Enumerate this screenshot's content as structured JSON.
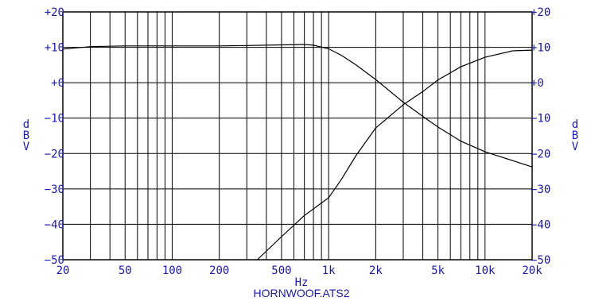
{
  "chart_data": {
    "type": "line",
    "title": "",
    "subtitle": "HORNWOOF.ATS2",
    "xlabel": "Hz",
    "ylabel_left": [
      "d",
      "B",
      "V"
    ],
    "ylabel_right": [
      "d",
      "B",
      "V"
    ],
    "x_scale": "log",
    "xlim": [
      20,
      20000
    ],
    "ylim": [
      -50,
      20
    ],
    "grid": true,
    "x_ticks": [
      {
        "value": 20,
        "label": "20"
      },
      {
        "value": 50,
        "label": "50"
      },
      {
        "value": 100,
        "label": "100"
      },
      {
        "value": 200,
        "label": "200"
      },
      {
        "value": 500,
        "label": "500"
      },
      {
        "value": 1000,
        "label": "1k"
      },
      {
        "value": 2000,
        "label": "2k"
      },
      {
        "value": 5000,
        "label": "5k"
      },
      {
        "value": 10000,
        "label": "10k"
      },
      {
        "value": 20000,
        "label": "20k"
      }
    ],
    "y_ticks": [
      {
        "value": 20,
        "label": "+20"
      },
      {
        "value": 10,
        "label": "+10"
      },
      {
        "value": 0,
        "label": "+0"
      },
      {
        "value": -10,
        "label": "−10"
      },
      {
        "value": -20,
        "label": "−20"
      },
      {
        "value": -30,
        "label": "−30"
      },
      {
        "value": -40,
        "label": "−40"
      },
      {
        "value": -50,
        "label": "−50"
      }
    ],
    "series": [
      {
        "x": [
          20,
          30,
          50,
          100,
          200,
          300,
          500,
          700,
          800,
          1000,
          1200,
          1500,
          2000,
          3000,
          4000,
          5000,
          7000,
          10000,
          15000,
          20000
        ],
        "y": [
          9.5,
          10.2,
          10.4,
          10.4,
          10.4,
          10.5,
          10.7,
          10.8,
          10.6,
          9.6,
          7.8,
          5.0,
          0.9,
          -5.5,
          -9.5,
          -12.5,
          -16.5,
          -19.5,
          -22.0,
          -23.8
        ]
      },
      {
        "x": [
          350,
          500,
          700,
          1000,
          1200,
          1500,
          2000,
          3000,
          4000,
          5000,
          7000,
          10000,
          15000,
          20000
        ],
        "y": [
          -50,
          -43.5,
          -37.5,
          -32.5,
          -27.5,
          -20.5,
          -12.8,
          -6.2,
          -2.5,
          0.8,
          4.5,
          7.2,
          9.0,
          9.2
        ]
      }
    ],
    "colors": {
      "grid": "#000000",
      "trace": "#000000",
      "labels": "#1a1aa8",
      "background": "#ffffff"
    }
  }
}
